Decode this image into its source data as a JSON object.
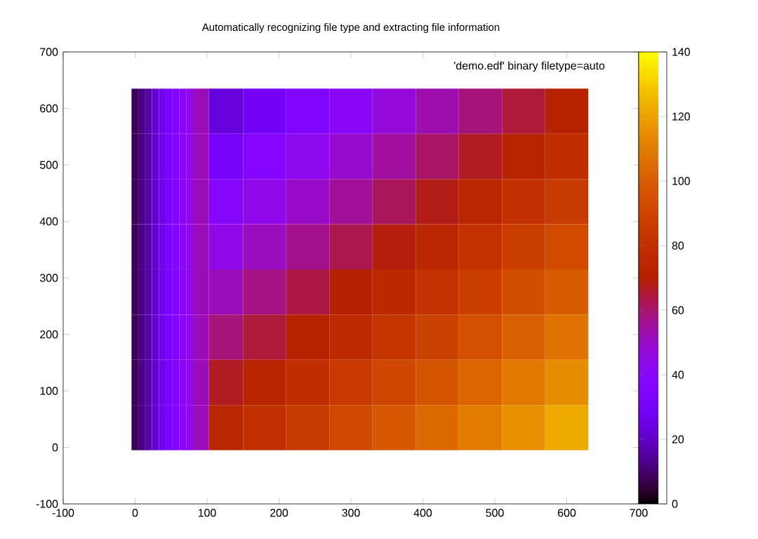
{
  "chart_data": {
    "type": "heatmap",
    "title": "Automatically recognizing file type and extracting file information",
    "annotations": [
      "'demo.edf' binary filetype=auto"
    ],
    "x": [
      -0.25,
      9.25,
      18.75,
      28.25,
      37.75,
      47.25,
      56.75,
      66.25,
      75.75,
      85.25,
      120,
      180,
      240,
      300,
      360,
      420,
      480,
      540,
      600
    ],
    "y": [
      595,
      515,
      435,
      355,
      275,
      195,
      115,
      35
    ],
    "cells": [
      [
        8,
        12,
        17,
        22,
        27,
        32,
        37,
        41,
        45,
        52,
        23,
        29,
        35,
        41,
        47,
        53,
        59,
        65,
        71
      ],
      [
        8,
        12,
        17,
        22,
        27,
        32,
        37,
        41,
        45,
        52,
        31,
        37,
        43,
        49,
        55,
        61,
        67,
        73,
        79
      ],
      [
        8,
        12,
        17,
        22,
        27,
        32,
        37,
        41,
        45,
        52,
        38,
        44,
        50,
        56,
        62,
        68,
        74,
        80,
        86
      ],
      [
        8,
        12,
        17,
        22,
        27,
        32,
        37,
        41,
        45,
        52,
        45,
        51,
        57,
        63,
        69,
        75,
        81,
        87,
        93
      ],
      [
        8,
        12,
        17,
        22,
        27,
        32,
        37,
        41,
        45,
        52,
        52,
        58,
        64,
        70,
        76,
        82,
        88,
        94,
        100
      ],
      [
        8,
        12,
        17,
        22,
        27,
        32,
        37,
        41,
        45,
        52,
        59,
        65,
        71,
        77,
        83,
        89,
        95,
        101,
        107
      ],
      [
        8,
        12,
        17,
        22,
        27,
        32,
        37,
        41,
        45,
        52,
        67,
        73,
        79,
        85,
        91,
        97,
        103,
        109,
        115
      ],
      [
        8,
        12,
        17,
        22,
        27,
        32,
        37,
        41,
        45,
        52,
        74,
        80,
        86,
        92,
        98,
        104,
        110,
        116,
        122
      ]
    ],
    "clim": [
      0,
      140
    ],
    "cticks": [
      0,
      20,
      40,
      60,
      80,
      100,
      120,
      140
    ],
    "xlim": [
      -100,
      700
    ],
    "xticks": [
      -100,
      0,
      100,
      200,
      300,
      400,
      500,
      600,
      700
    ],
    "ylim": [
      -100,
      700
    ],
    "yticks": [
      -100,
      0,
      100,
      200,
      300,
      400,
      500,
      600,
      700
    ]
  }
}
